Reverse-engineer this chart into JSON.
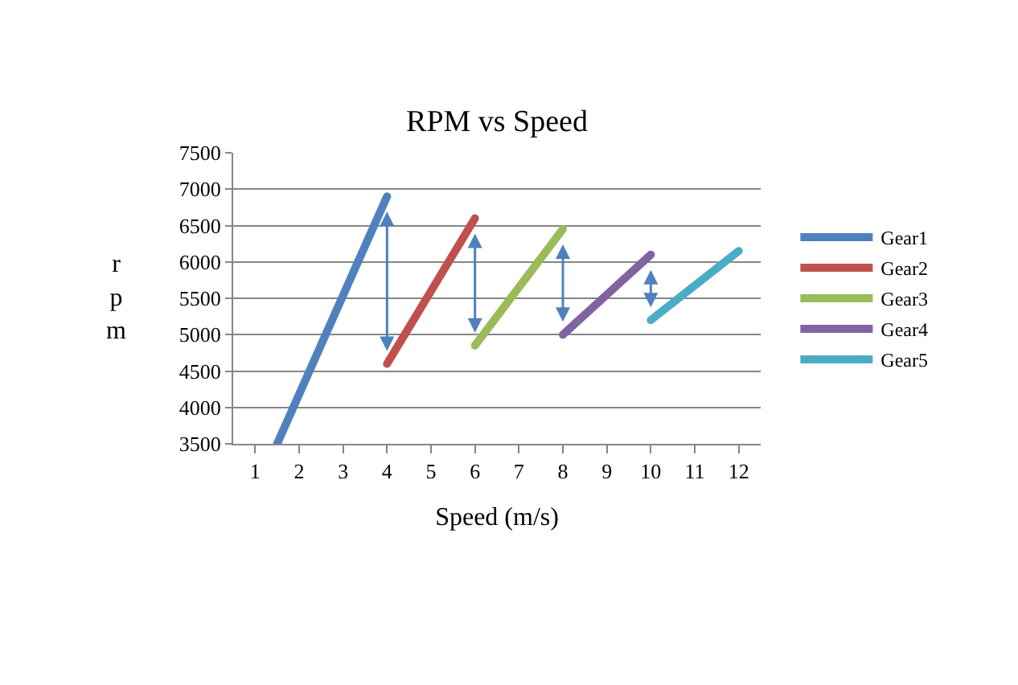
{
  "chart_data": {
    "type": "line",
    "title": "RPM vs Speed",
    "xlabel": "Speed (m/s)",
    "ylabel": "rpm",
    "series": [
      {
        "name": "Gear1",
        "color": "#4f81bd",
        "x": [
          1.5,
          4
        ],
        "values": [
          3500,
          6900
        ]
      },
      {
        "name": "Gear2",
        "color": "#c0504d",
        "x": [
          4,
          6
        ],
        "values": [
          4600,
          6600
        ]
      },
      {
        "name": "Gear3",
        "color": "#9bbb59",
        "x": [
          6,
          8
        ],
        "values": [
          4850,
          6450
        ]
      },
      {
        "name": "Gear4",
        "color": "#8064a2",
        "x": [
          8,
          10
        ],
        "values": [
          5000,
          6100
        ]
      },
      {
        "name": "Gear5",
        "color": "#4bacc6",
        "x": [
          10,
          12
        ],
        "values": [
          5200,
          6150
        ]
      }
    ],
    "xlim": [
      0.5,
      12.5
    ],
    "xticks": [
      1,
      2,
      3,
      4,
      5,
      6,
      7,
      8,
      9,
      10,
      11,
      12
    ],
    "ylim": [
      3500,
      7500
    ],
    "yticks": [
      3500,
      4000,
      4500,
      5000,
      5500,
      6000,
      6500,
      7000,
      7500
    ],
    "grid": "y",
    "legend": "right",
    "marker": "none",
    "line_style": "solid"
  }
}
